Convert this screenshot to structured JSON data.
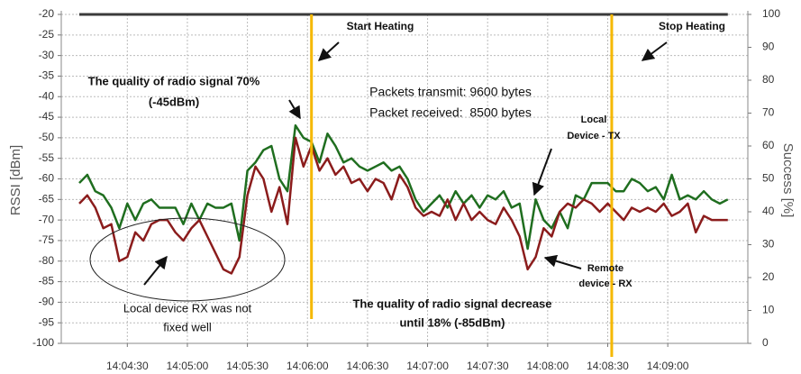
{
  "chart_data": {
    "type": "line",
    "ylabel": "RSSI [dBm]",
    "y2label": "Success [%]",
    "xlim": [
      "14:03:57",
      "14:09:40"
    ],
    "xticks": [
      "14:04:30",
      "14:05:00",
      "14:05:30",
      "14:06:00",
      "14:06:30",
      "14:07:00",
      "14:07:30",
      "14:08:00",
      "14:08:30",
      "14:09:00"
    ],
    "ylim": [
      -100,
      -20
    ],
    "yticks": [
      -20,
      -25,
      -30,
      -35,
      -40,
      -45,
      -50,
      -55,
      -60,
      -65,
      -70,
      -75,
      -80,
      -85,
      -90,
      -95,
      -100
    ],
    "y2lim": [
      0,
      100
    ],
    "y2ticks": [
      100,
      90,
      80,
      70,
      60,
      50,
      40,
      30,
      20,
      10,
      0
    ],
    "grid": true,
    "x": [
      "14:04:06",
      "14:04:10",
      "14:04:14",
      "14:04:18",
      "14:04:22",
      "14:04:26",
      "14:04:30",
      "14:04:34",
      "14:04:38",
      "14:04:42",
      "14:04:46",
      "14:04:50",
      "14:04:54",
      "14:04:58",
      "14:05:02",
      "14:05:06",
      "14:05:10",
      "14:05:14",
      "14:05:18",
      "14:05:22",
      "14:05:26",
      "14:05:30",
      "14:05:34",
      "14:05:38",
      "14:05:42",
      "14:05:46",
      "14:05:50",
      "14:05:54",
      "14:05:58",
      "14:06:02",
      "14:06:06",
      "14:06:10",
      "14:06:14",
      "14:06:18",
      "14:06:22",
      "14:06:26",
      "14:06:30",
      "14:06:34",
      "14:06:38",
      "14:06:42",
      "14:06:46",
      "14:06:50",
      "14:06:54",
      "14:06:58",
      "14:07:02",
      "14:07:06",
      "14:07:10",
      "14:07:14",
      "14:07:18",
      "14:07:22",
      "14:07:26",
      "14:07:30",
      "14:07:34",
      "14:07:38",
      "14:07:42",
      "14:07:46",
      "14:07:50",
      "14:07:54",
      "14:07:58",
      "14:08:02",
      "14:08:06",
      "14:08:10",
      "14:08:14",
      "14:08:18",
      "14:08:22",
      "14:08:26",
      "14:08:30",
      "14:08:34",
      "14:08:38",
      "14:08:42",
      "14:08:46",
      "14:08:50",
      "14:08:54",
      "14:08:58",
      "14:09:02",
      "14:09:06",
      "14:09:10",
      "14:09:14",
      "14:09:18",
      "14:09:22",
      "14:09:26",
      "14:09:30"
    ],
    "series": [
      {
        "color": "#1f6e1f",
        "values": [
          -61,
          -59,
          -63,
          -64,
          -67,
          -72,
          -66,
          -70,
          -66,
          -65,
          -67,
          -67,
          -67,
          -71,
          -66,
          -70,
          -66,
          -67,
          -67,
          -66,
          -75,
          -58,
          -56,
          -53,
          -52,
          -60,
          -63,
          -47,
          -50,
          -51,
          -56,
          -49,
          -52,
          -56,
          -55,
          -57,
          -58,
          -57,
          -56,
          -58,
          -57,
          -60,
          -65,
          -68,
          -66,
          -64,
          -67,
          -63,
          -66,
          -64,
          -67,
          -64,
          -65,
          -63,
          -67,
          -66,
          -77,
          -65,
          -70,
          -72,
          -68,
          -72,
          -64,
          -65,
          -61,
          -61,
          -61,
          -63,
          -63,
          -60,
          -61,
          -63,
          -62,
          -65,
          -59,
          -65,
          -64,
          -65,
          -63,
          -65,
          -66,
          -65
        ]
      },
      {
        "color": "#8b1c1c",
        "values": [
          -66,
          -64,
          -67,
          -72,
          -71,
          -80,
          -79,
          -73,
          -75,
          -71,
          -70,
          -70,
          -73,
          -75,
          -72,
          -70,
          -74,
          -78,
          -82,
          -83,
          -79,
          -64,
          -57,
          -60,
          -68,
          -62,
          -71,
          -50,
          -57,
          -52,
          -58,
          -55,
          -59,
          -57,
          -61,
          -60,
          -63,
          -60,
          -61,
          -65,
          -59,
          -62,
          -67,
          -69,
          -68,
          -69,
          -65,
          -70,
          -66,
          -70,
          -68,
          -70,
          -71,
          -67,
          -70,
          -74,
          -82,
          -79,
          -72,
          -74,
          -68,
          -66,
          -67,
          -65,
          -66,
          -68,
          -66,
          -68,
          -70,
          -67,
          -68,
          -67,
          -68,
          -66,
          -69,
          -68,
          -66,
          -73,
          -69,
          -70,
          -70,
          -70
        ]
      },
      {
        "color": "#3a3a3a",
        "axis": "y2",
        "values": [
          100,
          100,
          100,
          100,
          100,
          100,
          100,
          100,
          100,
          100,
          100,
          100,
          100,
          100,
          100,
          100,
          100,
          100,
          100,
          100,
          100,
          100,
          100,
          100,
          100,
          100,
          100,
          100,
          100,
          100,
          100,
          100,
          100,
          100,
          100,
          100,
          100,
          100,
          100,
          100,
          100,
          100,
          100,
          100,
          100,
          100,
          100,
          100,
          100,
          100,
          100,
          100,
          100,
          100,
          100,
          100,
          100,
          100,
          100,
          100,
          100,
          100,
          100,
          100,
          100,
          100,
          100,
          100,
          100,
          100,
          100,
          100,
          100,
          100,
          100,
          100,
          100,
          100,
          100,
          100,
          100,
          100
        ]
      }
    ],
    "events": [
      {
        "x": "14:06:02",
        "color": "#f5b800"
      },
      {
        "x": "14:08:32",
        "color": "#f5b800"
      }
    ],
    "annotations": [
      "Start Heating",
      "Stop Heating",
      "The quality of radio signal 70%",
      "(-45dBm)",
      "Packets transmit: 9600 bytes",
      "Packet received:  8500 bytes",
      "Local",
      "Device - TX",
      "Remote",
      "device - RX",
      "Local device RX was not",
      "fixed well",
      "The quality of radio signal decrease",
      "until 18% (-85dBm)"
    ]
  }
}
